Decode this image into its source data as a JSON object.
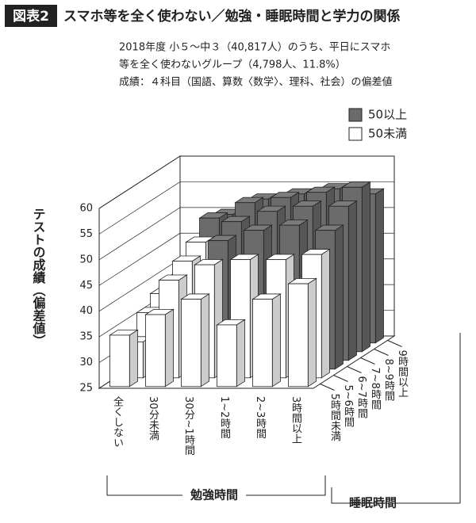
{
  "header": {
    "badge": "図表2",
    "title": "スマホ等を全く使わない／勉強・睡眠時間と学力の関係"
  },
  "subtitle": [
    "2018年度 小５～中３（40,817人）のうち、平日にスマホ",
    "等を全く使わないグループ（4,798人、11.8%）",
    "成績：４科目（国語、算数〈数学〉、理科、社会）の偏差値"
  ],
  "chart_data": {
    "type": "bar3d",
    "y_label": "テストの成績（偏差値）",
    "x_label": "勉強時間",
    "depth_label": "睡眠時間",
    "categories": [
      "全くしない",
      "30分未満",
      "30分~1時間",
      "1~2時間",
      "2~3時間",
      "3時間以上"
    ],
    "depth_categories": [
      "5時間未満",
      "5~6時間",
      "6~7時間",
      "7~8時間",
      "8~9時間",
      "9時間以上"
    ],
    "values": [
      [
        35,
        39,
        42,
        37,
        42,
        45
      ],
      [
        32,
        44,
        47,
        48,
        48,
        49
      ],
      [
        36,
        46,
        50,
        52,
        53,
        52
      ],
      [
        38,
        48,
        52,
        54,
        55,
        55
      ],
      [
        39,
        51,
        54,
        55,
        56,
        57
      ],
      [
        38,
        50,
        53,
        54,
        55,
        54
      ]
    ],
    "threshold": 50,
    "legend": [
      {
        "label": "50以上",
        "color": "#6b6b6b"
      },
      {
        "label": "50未満",
        "color": "#ffffff"
      }
    ],
    "ylim": [
      25,
      60
    ],
    "yticks": [
      25,
      30,
      35,
      40,
      45,
      50,
      55,
      60
    ],
    "grid": true
  }
}
